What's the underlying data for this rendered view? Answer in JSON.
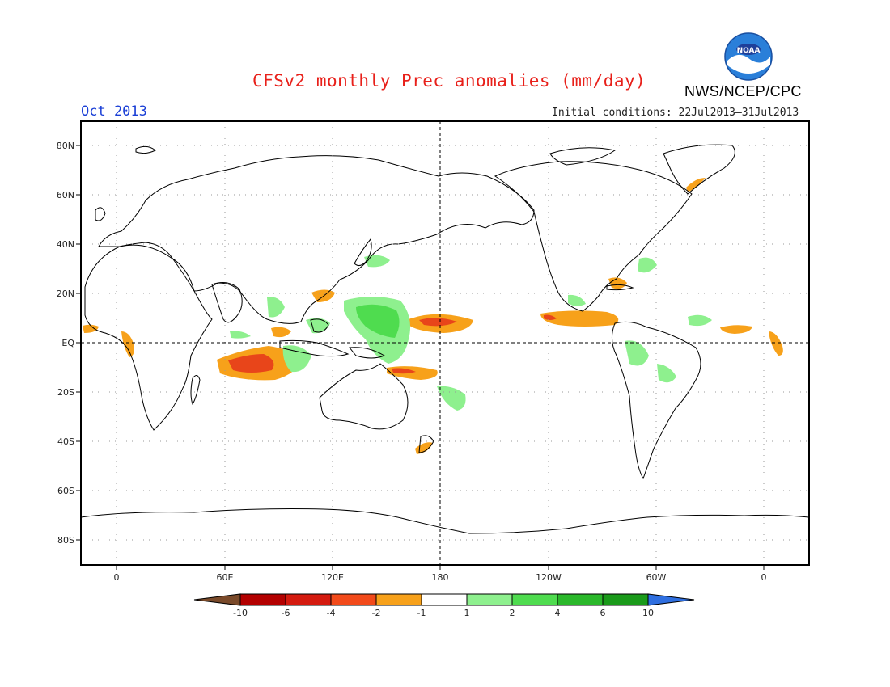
{
  "title": "CFSv2 monthly Prec anomalies (mm/day)",
  "period": "Oct 2013",
  "initial_conditions": "Initial conditions: 22Jul2013–31Jul2013",
  "organization": "NWS/NCEP/CPC",
  "logo_text": "NOAA",
  "map": {
    "lat_labels": [
      "80N",
      "60N",
      "40N",
      "20N",
      "EQ",
      "20S",
      "40S",
      "60S",
      "80S"
    ],
    "lon_labels": [
      "0",
      "60E",
      "120E",
      "180",
      "120W",
      "60W",
      "0"
    ]
  },
  "colorbar": {
    "labels": [
      "-10",
      "-6",
      "-4",
      "-2",
      "-1",
      "1",
      "2",
      "4",
      "6",
      "10"
    ],
    "below_color": "#7a4a2a",
    "above_color": "#2f6fe0",
    "colors": [
      "#b30000",
      "#d41a0f",
      "#f24a1a",
      "#f7a11a",
      "#ffffff",
      "#8ef08e",
      "#4fdc4f",
      "#2bb82b",
      "#1a9a1a"
    ]
  },
  "anomaly_colors": {
    "dry_light": "#f7a11a",
    "dry_strong": "#e8451a",
    "wet_light": "#8ef08e",
    "wet_strong": "#4fdc4f"
  }
}
